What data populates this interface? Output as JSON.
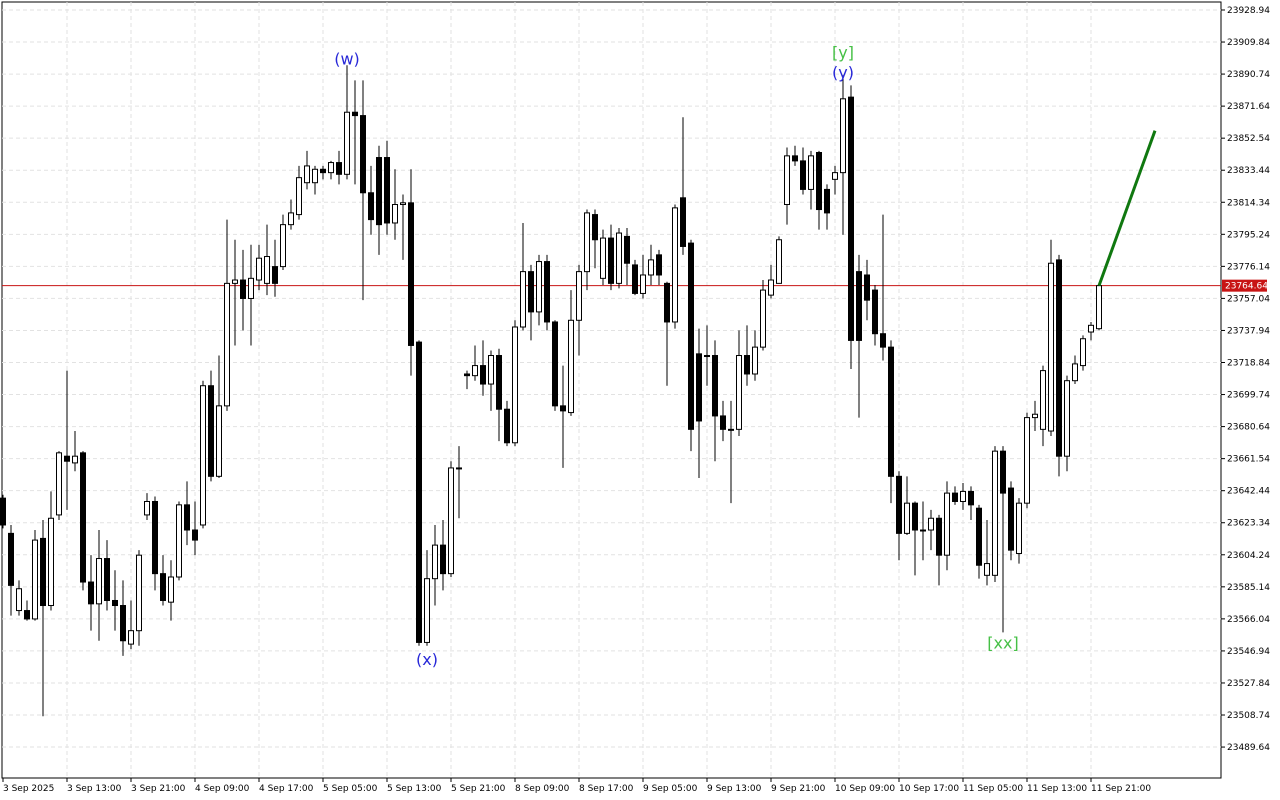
{
  "chart_data": {
    "type": "candlestick",
    "categories": [
      "3 Sep 2025",
      null,
      null,
      null,
      null,
      null,
      null,
      null,
      "3 Sep 13:00",
      null,
      null,
      null,
      null,
      null,
      null,
      null,
      "3 Sep 21:00",
      null,
      null,
      null,
      null,
      null,
      null,
      null,
      "4 Sep 09:00",
      null,
      null,
      null,
      null,
      null,
      null,
      null,
      "4 Sep 17:00",
      null,
      null,
      null,
      null,
      null,
      null,
      null,
      "5 Sep 05:00",
      null,
      null,
      null,
      null,
      null,
      null,
      null,
      "5 Sep 13:00",
      null,
      null,
      null,
      null,
      null,
      null,
      null,
      "5 Sep 21:00",
      null,
      null,
      null,
      null,
      null,
      null,
      null,
      "8 Sep 09:00",
      null,
      null,
      null,
      null,
      null,
      null,
      null,
      "8 Sep 17:00",
      null,
      null,
      null,
      null,
      null,
      null,
      null,
      "9 Sep 05:00",
      null,
      null,
      null,
      null,
      null,
      null,
      null,
      "9 Sep 13:00",
      null,
      null,
      null,
      null,
      null,
      null,
      null,
      "9 Sep 21:00",
      null,
      null,
      null,
      null,
      null,
      null,
      null,
      "10 Sep 09:00",
      null,
      null,
      null,
      null,
      null,
      null,
      null,
      "10 Sep 17:00",
      null,
      null,
      null,
      null,
      null,
      null,
      null,
      "11 Sep 05:00",
      null,
      null,
      null,
      null,
      null,
      null,
      null,
      "11 Sep 13:00",
      null,
      null,
      null,
      null,
      null,
      null,
      null,
      "11 Sep 21:00",
      null
    ],
    "open": [
      23638,
      23617,
      23571,
      23571,
      23566,
      23614,
      23574,
      23628,
      23663,
      23659,
      23665,
      23588,
      23575,
      23602,
      23577,
      23574,
      23551,
      23559,
      23628,
      23636,
      23593,
      23576,
      23591,
      23634,
      23619,
      23622,
      23705,
      23651,
      23693,
      23766,
      23768,
      23757,
      23768,
      23766,
      23776,
      23776,
      23801,
      23807,
      23826,
      23826,
      23834,
      23832,
      23838,
      23831,
      23868,
      23866,
      23820,
      23841,
      23841,
      23802,
      23813,
      23814,
      23731,
      23552,
      23590,
      23610,
      23593,
      23656,
      23712,
      23711,
      23717,
      23706,
      23723,
      23691,
      23671,
      23740,
      23773,
      23749,
      23779,
      23743,
      23693,
      23689,
      23744,
      23773,
      23807,
      23769,
      23793,
      23766,
      23794,
      23777,
      23760,
      23771,
      23783,
      23766,
      23743,
      23817,
      23790,
      23724,
      23723,
      23723,
      23687,
      23679,
      23679,
      23723,
      23712,
      23728,
      23759,
      23766,
      23813,
      23842,
      23839,
      23822,
      23844,
      23822,
      23828,
      23832,
      23877,
      23773,
      23771,
      23762,
      23736,
      23728,
      23651,
      23617,
      23635,
      23619,
      23619,
      23626,
      23604,
      23641,
      23636,
      23642,
      23632,
      23592,
      23592,
      23666,
      23644,
      23605,
      23635,
      23686,
      23679,
      23678,
      23780,
      23663,
      23708,
      23717,
      23737,
      23739
    ],
    "high": [
      23640,
      23622,
      23589,
      23577,
      23619,
      23625,
      23642,
      23666,
      23714,
      23678,
      23666,
      23604,
      23619,
      23613,
      23595,
      23589,
      23577,
      23607,
      23641,
      23639,
      23604,
      23601,
      23636,
      23648,
      23636,
      23708,
      23714,
      23723,
      23804,
      23792,
      23786,
      23789,
      23789,
      23801,
      23792,
      23807,
      23816,
      23836,
      23845,
      23836,
      23836,
      23839,
      23845,
      23896,
      23887,
      23887,
      23836,
      23848,
      23851,
      23834,
      23819,
      23834,
      23732,
      23607,
      23622,
      23625,
      23660,
      23669,
      23714,
      23729,
      23732,
      23726,
      23727,
      23696,
      23744,
      23802,
      23777,
      23783,
      23783,
      23744,
      23717,
      23762,
      23777,
      23810,
      23810,
      23798,
      23801,
      23799,
      23799,
      23780,
      23783,
      23789,
      23786,
      23767,
      23813,
      23865,
      23792,
      23739,
      23741,
      23732,
      23696,
      23696,
      23738,
      23741,
      23738,
      23768,
      23777,
      23794,
      23847,
      23848,
      23847,
      23845,
      23845,
      23825,
      23836,
      23890,
      23884,
      23783,
      23780,
      23765,
      23807,
      23732,
      23654,
      23651,
      23636,
      23636,
      23631,
      23628,
      23648,
      23645,
      23647,
      23645,
      23634,
      23625,
      23669,
      23669,
      23648,
      23638,
      23689,
      23696,
      23717,
      23792,
      23783,
      23711,
      23723,
      23735,
      23743,
      23765
    ],
    "low": [
      23620,
      23568,
      23568,
      23565,
      23565,
      23508,
      23571,
      23625,
      23631,
      23654,
      23583,
      23559,
      23553,
      23571,
      23559,
      23544,
      23548,
      23550,
      23625,
      23583,
      23574,
      23565,
      23589,
      23610,
      23604,
      23620,
      23648,
      23650,
      23690,
      23729,
      23738,
      23729,
      23762,
      23759,
      23758,
      23774,
      23798,
      23804,
      23822,
      23819,
      23828,
      23828,
      23825,
      23828,
      23825,
      23756,
      23795,
      23783,
      23795,
      23792,
      23780,
      23711,
      23550,
      23550,
      23574,
      23583,
      23591,
      23626,
      23703,
      23708,
      23699,
      23690,
      23672,
      23669,
      23669,
      23738,
      23732,
      23741,
      23738,
      23690,
      23656,
      23687,
      23723,
      23762,
      23775,
      23765,
      23762,
      23763,
      23765,
      23759,
      23757,
      23765,
      23765,
      23705,
      23739,
      23783,
      23666,
      23650,
      23705,
      23660,
      23672,
      23635,
      23675,
      23705,
      23708,
      23726,
      23757,
      23766,
      23801,
      23836,
      23819,
      23810,
      23798,
      23798,
      23819,
      23795,
      23715,
      23686,
      23744,
      23729,
      23720,
      23635,
      23601,
      23616,
      23592,
      23601,
      23607,
      23586,
      23595,
      23634,
      23631,
      23625,
      23590,
      23586,
      23588,
      23558,
      23601,
      23599,
      23632,
      23678,
      23669,
      23675,
      23651,
      23654,
      23706,
      23714,
      23732,
      23738
    ],
    "close": [
      23622,
      23586,
      23584,
      23566,
      23613,
      23574,
      23626,
      23665,
      23660,
      23663,
      23588,
      23575,
      23602,
      23577,
      23574,
      23553,
      23559,
      23604,
      23636,
      23593,
      23577,
      23591,
      23634,
      23619,
      23613,
      23705,
      23651,
      23693,
      23766,
      23768,
      23757,
      23769,
      23781,
      23782,
      23766,
      23801,
      23808,
      23829,
      23836,
      23834,
      23832,
      23838,
      23831,
      23868,
      23866,
      23820,
      23804,
      23801,
      23802,
      23813,
      23814,
      23729,
      23552,
      23590,
      23610,
      23593,
      23656,
      23656,
      23711,
      23717,
      23706,
      23723,
      23691,
      23671,
      23740,
      23773,
      23749,
      23779,
      23743,
      23693,
      23690,
      23744,
      23773,
      23808,
      23792,
      23793,
      23766,
      23796,
      23778,
      23760,
      23771,
      23780,
      23771,
      23743,
      23811,
      23788,
      23679,
      23684,
      23723,
      23687,
      23679,
      23679,
      23723,
      23712,
      23728,
      23762,
      23768,
      23792,
      23842,
      23839,
      23822,
      23842,
      23810,
      23808,
      23832,
      23876,
      23732,
      23732,
      23756,
      23736,
      23728,
      23651,
      23617,
      23635,
      23619,
      23619,
      23626,
      23604,
      23641,
      23636,
      23642,
      23634,
      23598,
      23599,
      23666,
      23641,
      23607,
      23635,
      23686,
      23688,
      23714,
      23778,
      23663,
      23708,
      23718,
      23733,
      23741,
      23764.64
    ],
    "up_color": "#ffffff",
    "down_color": "#000000",
    "ylim": [
      23471.2,
      23933.7
    ],
    "yticks": [
      23928.94,
      23909.84,
      23890.74,
      23871.64,
      23852.54,
      23833.44,
      23814.34,
      23795.24,
      23776.14,
      23757.04,
      23737.94,
      23718.84,
      23699.74,
      23680.64,
      23661.54,
      23642.44,
      23623.34,
      23604.24,
      23585.14,
      23566.04,
      23546.94,
      23527.84,
      23508.74,
      23489.64
    ],
    "grid": true,
    "current_price": 23764.64,
    "current_price_color": "#c81414",
    "projection": {
      "color": "#107810",
      "x": [
        137,
        144
      ],
      "values": [
        23764.64,
        23857
      ]
    },
    "annotations": [
      {
        "text": "(w)",
        "color": "#2828d8",
        "x": 43,
        "y": 23900
      },
      {
        "text": "(x)",
        "color": "#2828d8",
        "x": 53,
        "y": 23542
      },
      {
        "text": "[y]",
        "color": "#46c046",
        "x": 105,
        "y": 23904
      },
      {
        "text": "(y)",
        "color": "#2828d8",
        "x": 105,
        "y": 23892
      },
      {
        "text": "[xx]",
        "color": "#46c046",
        "x": 125,
        "y": 23552
      }
    ]
  }
}
